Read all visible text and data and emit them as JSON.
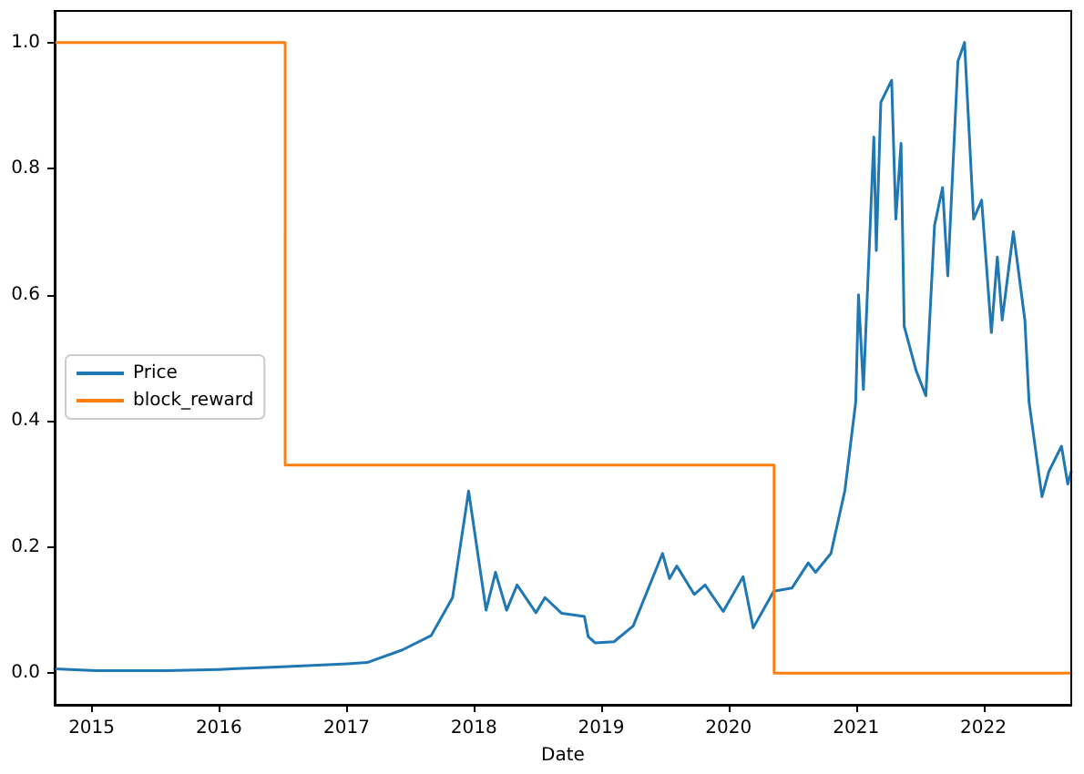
{
  "chart_data": {
    "type": "line",
    "xlabel": "Date",
    "xlim": [
      "2014-09-17",
      "2022-09-10"
    ],
    "xticks": [
      "2015",
      "2016",
      "2017",
      "2018",
      "2019",
      "2020",
      "2021",
      "2022"
    ],
    "ylim": [
      -0.05,
      1.05
    ],
    "yticks": [
      {
        "value": 0,
        "label": "0.0"
      },
      {
        "value": 0.2,
        "label": "0.2"
      },
      {
        "value": 0.4,
        "label": "0.4"
      },
      {
        "value": 0.6,
        "label": "0.6"
      },
      {
        "value": 0.8,
        "label": "0.8"
      },
      {
        "value": 1,
        "label": "1.0"
      }
    ],
    "grid": false,
    "legend": "left",
    "marker": "none",
    "line_style": "solid",
    "series": [
      {
        "name": "Price",
        "color": "#1f77b4",
        "x": [
          "2014-09-17",
          "2015-01-14",
          "2015-08-01",
          "2016-01-01",
          "2016-06-16",
          "2017-01-04",
          "2017-03-01",
          "2017-06-10",
          "2017-09-01",
          "2017-11-01",
          "2017-12-17",
          "2018-02-05",
          "2018-03-04",
          "2018-04-05",
          "2018-05-05",
          "2018-06-28",
          "2018-07-24",
          "2018-09-10",
          "2018-11-14",
          "2018-11-25",
          "2018-12-15",
          "2019-02-07",
          "2019-04-03",
          "2019-06-26",
          "2019-07-16",
          "2019-08-06",
          "2019-09-25",
          "2019-10-26",
          "2019-12-17",
          "2020-02-12",
          "2020-03-12",
          "2020-05-10",
          "2020-07-01",
          "2020-08-17",
          "2020-09-07",
          "2020-10-21",
          "2020-11-30",
          "2020-12-31",
          "2021-01-08",
          "2021-01-22",
          "2021-02-21",
          "2021-02-28",
          "2021-03-13",
          "2021-04-13",
          "2021-04-25",
          "2021-05-10",
          "2021-05-19",
          "2021-06-22",
          "2021-07-20",
          "2021-08-14",
          "2021-09-06",
          "2021-09-21",
          "2021-10-20",
          "2021-11-08",
          "2021-12-04",
          "2021-12-27",
          "2022-01-24",
          "2022-02-10",
          "2022-02-24",
          "2022-03-28",
          "2022-04-30",
          "2022-05-12",
          "2022-06-18",
          "2022-07-08",
          "2022-08-13",
          "2022-08-31",
          "2022-09-10"
        ],
        "values": [
          0.007,
          0.004,
          0.004,
          0.006,
          0.01,
          0.015,
          0.017,
          0.037,
          0.06,
          0.12,
          0.289,
          0.1,
          0.16,
          0.1,
          0.14,
          0.096,
          0.12,
          0.095,
          0.09,
          0.058,
          0.048,
          0.05,
          0.075,
          0.19,
          0.15,
          0.17,
          0.125,
          0.14,
          0.098,
          0.153,
          0.072,
          0.13,
          0.135,
          0.175,
          0.16,
          0.19,
          0.29,
          0.43,
          0.6,
          0.45,
          0.85,
          0.67,
          0.905,
          0.94,
          0.72,
          0.84,
          0.55,
          0.48,
          0.44,
          0.71,
          0.77,
          0.63,
          0.97,
          1.0,
          0.72,
          0.75,
          0.54,
          0.66,
          0.56,
          0.7,
          0.56,
          0.43,
          0.28,
          0.32,
          0.36,
          0.3,
          0.32
        ]
      },
      {
        "name": "block_reward",
        "type": "step",
        "color": "#ff7f0e",
        "x": [
          "2014-09-17",
          "2016-07-09",
          "2020-05-11",
          "2022-09-10"
        ],
        "values": [
          1,
          0.33,
          0,
          0
        ]
      }
    ]
  }
}
